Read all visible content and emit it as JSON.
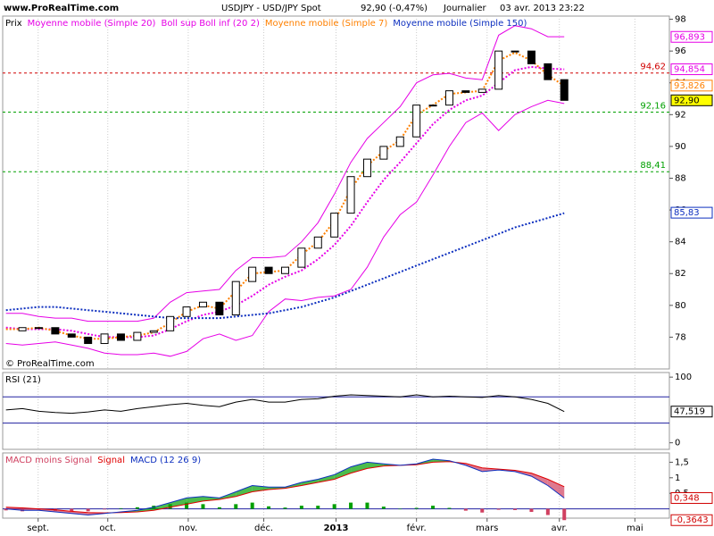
{
  "header": {
    "site": "www.ProRealTime.com",
    "symbol": "USDJPY - USD/JPY Spot",
    "quote": "92,90 (-0,47%)",
    "period": "Journalier",
    "timestamp": "03 avr. 2013 23:22"
  },
  "chart_data": [
    {
      "type": "candlestick",
      "legend_prefix": "Prix",
      "watermark": "© ProRealTime.com",
      "categories": [
        null,
        null,
        null,
        null,
        null,
        null,
        null,
        null,
        null,
        null,
        null,
        null,
        null,
        null,
        null,
        null,
        null,
        null,
        null,
        null,
        null,
        null,
        null,
        null,
        null,
        null,
        null,
        null,
        null,
        null,
        null,
        null,
        null,
        null,
        null
      ],
      "xlim": [
        -0.2,
        40.4
      ],
      "ylim": [
        76,
        98.2
      ],
      "yticks": [
        78,
        80,
        82,
        84,
        86,
        88,
        90,
        92,
        94,
        96,
        98
      ],
      "series": [
        {
          "name": "Moyenne mobile (Simple 20)",
          "color": "#e600e6",
          "style": "dotted",
          "values": [
            78.6,
            78.5,
            78.5,
            78.5,
            78.4,
            78.2,
            78.0,
            78.0,
            78.0,
            78.1,
            78.5,
            79.0,
            79.4,
            79.6,
            80.0,
            80.6,
            81.3,
            81.8,
            82.2,
            82.9,
            83.8,
            85.0,
            86.5,
            87.9,
            89.0,
            90.2,
            91.4,
            92.3,
            92.9,
            93.2,
            94.0,
            94.8,
            95.0,
            94.9,
            94.85
          ]
        },
        {
          "name": "Boll sup Boll inf (20 2)",
          "color": "#e600e6",
          "style": "solid",
          "upper": [
            79.5,
            79.5,
            79.3,
            79.2,
            79.2,
            79.0,
            79.0,
            79.0,
            79.0,
            79.2,
            80.2,
            80.8,
            80.9,
            81.0,
            82.2,
            83.0,
            83.0,
            83.1,
            84.0,
            85.2,
            87.0,
            89.0,
            90.5,
            91.5,
            92.5,
            94.0,
            94.5,
            94.6,
            94.3,
            94.2,
            97.0,
            97.6,
            97.4,
            96.9,
            96.9
          ],
          "lower": [
            77.6,
            77.5,
            77.6,
            77.7,
            77.5,
            77.3,
            77.0,
            76.9,
            76.9,
            77.0,
            76.8,
            77.1,
            77.9,
            78.2,
            77.8,
            78.1,
            79.6,
            80.4,
            80.3,
            80.5,
            80.6,
            81.0,
            82.4,
            84.3,
            85.7,
            86.5,
            88.2,
            90.0,
            91.5,
            92.1,
            91.0,
            92.0,
            92.5,
            92.9,
            92.7
          ]
        },
        {
          "name": "Moyenne mobile (Simple 7)",
          "color": "#ff8000",
          "style": "dotted",
          "values": [
            78.5,
            78.5,
            78.6,
            78.4,
            78.1,
            77.9,
            77.9,
            78.0,
            78.1,
            78.3,
            78.9,
            79.6,
            80.0,
            79.8,
            80.9,
            82.0,
            82.1,
            82.2,
            83.2,
            84.0,
            85.3,
            87.3,
            88.8,
            89.7,
            90.4,
            92.0,
            92.6,
            93.3,
            93.4,
            93.5,
            95.4,
            95.9,
            95.4,
            94.5,
            93.8
          ]
        },
        {
          "name": "Moyenne mobile (Simple 150)",
          "color": "#0d2fbf",
          "style": "dotted",
          "values": [
            79.7,
            79.8,
            79.9,
            79.9,
            79.8,
            79.7,
            79.6,
            79.5,
            79.4,
            79.3,
            79.2,
            79.2,
            79.2,
            79.2,
            79.3,
            79.4,
            79.5,
            79.7,
            79.9,
            80.2,
            80.5,
            80.9,
            81.3,
            81.7,
            82.1,
            82.5,
            82.9,
            83.3,
            83.7,
            84.1,
            84.5,
            84.9,
            85.2,
            85.5,
            85.8
          ]
        },
        {
          "name": "Prix",
          "color": "#000000",
          "style": "candle",
          "values": [
            78.4,
            78.6,
            78.6,
            78.2,
            78.0,
            77.6,
            78.2,
            77.8,
            78.3,
            78.4,
            79.3,
            79.9,
            80.2,
            79.4,
            81.5,
            82.4,
            82.0,
            82.4,
            83.6,
            84.3,
            85.8,
            88.1,
            89.2,
            90.0,
            90.6,
            92.6,
            92.6,
            93.5,
            93.4,
            93.6,
            96.0,
            96.0,
            95.2,
            94.2,
            92.9
          ]
        }
      ],
      "levels": [
        {
          "value": 94.62,
          "label": "94,62",
          "color": "#d00000"
        },
        {
          "value": 92.16,
          "label": "92,16",
          "color": "#00a000"
        },
        {
          "value": 88.41,
          "label": "88,41",
          "color": "#00a000"
        }
      ],
      "last_labels": [
        {
          "value": 96.893,
          "label": "96,893",
          "color": "#e600e6"
        },
        {
          "value": 94.854,
          "label": "94,854",
          "color": "#e600e6"
        },
        {
          "value": 93.826,
          "label": "93,826",
          "color": "#ff8000"
        },
        {
          "value": 92.9,
          "label": "92,90",
          "color": "#000000",
          "background": "#ffff00"
        },
        {
          "value": 85.83,
          "label": "85,83",
          "color": "#0d2fbf"
        }
      ]
    },
    {
      "type": "line",
      "categories": [
        null,
        null,
        null,
        null,
        null,
        null,
        null,
        null,
        null,
        null,
        null,
        null,
        null,
        null,
        null,
        null,
        null,
        null,
        null,
        null,
        null,
        null,
        null,
        null,
        null,
        null,
        null,
        null,
        null,
        null,
        null,
        null,
        null,
        null,
        null
      ],
      "xlim": [
        -0.2,
        40.4
      ],
      "ylim": [
        -10,
        107
      ],
      "yticks": [
        0,
        100
      ],
      "series": [
        {
          "name": "RSI (21)",
          "color": "#000000",
          "style": "solid",
          "values": [
            50,
            52,
            48,
            46,
            45,
            47,
            50,
            48,
            52,
            55,
            58,
            60,
            57,
            55,
            62,
            66,
            62,
            62,
            66,
            67,
            71,
            73,
            72,
            71,
            70,
            73,
            70,
            71,
            70,
            69,
            72,
            70,
            66,
            60,
            47.5
          ]
        }
      ],
      "levels": [
        {
          "value": 70,
          "color": "#2020a0"
        },
        {
          "value": 30,
          "color": "#2020a0"
        }
      ],
      "last_labels": [
        {
          "value": 47.519,
          "label": "47,519",
          "color": "#000000"
        }
      ]
    },
    {
      "type": "macd",
      "categories": [
        null,
        null,
        null,
        null,
        null,
        null,
        null,
        null,
        null,
        null,
        null,
        null,
        null,
        null,
        null,
        null,
        null,
        null,
        null,
        null,
        null,
        null,
        null,
        null,
        null,
        null,
        null,
        null,
        null,
        null,
        null,
        null,
        null,
        null,
        null
      ],
      "xlim": [
        -0.2,
        40.4
      ],
      "ylim": [
        -0.3,
        1.8
      ],
      "yticks": [
        {
          "value": 1.5,
          "label": "1,5"
        },
        1,
        {
          "value": 0.5,
          "label": "0,5"
        }
      ],
      "xticks": [
        {
          "value": 1.96,
          "label": "sept."
        },
        {
          "value": 6.2,
          "label": "oct."
        },
        {
          "value": 11.1,
          "label": "nov."
        },
        {
          "value": 15.7,
          "label": "déc."
        },
        {
          "value": 20.1,
          "label": "2013"
        },
        {
          "value": 25,
          "label": "févr."
        },
        {
          "value": 29.3,
          "label": "mars"
        },
        {
          "value": 33.7,
          "label": "avr."
        },
        {
          "value": 38.3,
          "label": "mai"
        }
      ],
      "series": [
        {
          "name": "MACD moins Signal",
          "color": "#d04060",
          "style": "histogram",
          "positive_color": "#00a000",
          "values": [
            -0.05,
            -0.08,
            -0.05,
            -0.07,
            -0.07,
            -0.08,
            -0.02,
            0.02,
            0.05,
            0.1,
            0.15,
            0.2,
            0.15,
            0.05,
            0.15,
            0.2,
            0.08,
            0.04,
            0.1,
            0.1,
            0.15,
            0.2,
            0.2,
            0.07,
            0.0,
            0.03,
            0.1,
            0.03,
            -0.06,
            -0.12,
            -0.03,
            -0.04,
            -0.1,
            -0.2,
            -0.3643
          ]
        },
        {
          "name": "Signal",
          "color": "#e00000",
          "style": "solid",
          "values": [
            0.05,
            0.03,
            0.0,
            -0.03,
            -0.08,
            -0.12,
            -0.13,
            -0.12,
            -0.1,
            -0.05,
            0.05,
            0.15,
            0.25,
            0.3,
            0.4,
            0.55,
            0.62,
            0.66,
            0.75,
            0.85,
            0.95,
            1.15,
            1.3,
            1.38,
            1.4,
            1.42,
            1.5,
            1.52,
            1.46,
            1.32,
            1.28,
            1.24,
            1.15,
            0.95,
            0.712
          ]
        },
        {
          "name": "MACD (12 26 9)",
          "color": "#0d2fbf",
          "style": "solid",
          "values": [
            0.0,
            -0.05,
            -0.05,
            -0.1,
            -0.15,
            -0.2,
            -0.15,
            -0.1,
            -0.05,
            0.05,
            0.2,
            0.35,
            0.4,
            0.35,
            0.55,
            0.75,
            0.7,
            0.7,
            0.85,
            0.95,
            1.1,
            1.35,
            1.5,
            1.45,
            1.4,
            1.45,
            1.6,
            1.55,
            1.4,
            1.2,
            1.25,
            1.2,
            1.05,
            0.75,
            0.348
          ]
        }
      ],
      "levels": [
        {
          "value": 0,
          "color": "#2020a0"
        }
      ],
      "last_labels": [
        {
          "value": 0.348,
          "label": "0,348",
          "color": "#d00000"
        },
        {
          "value": -0.3643,
          "label": "-0,3643",
          "color": "#d00000"
        }
      ]
    }
  ]
}
